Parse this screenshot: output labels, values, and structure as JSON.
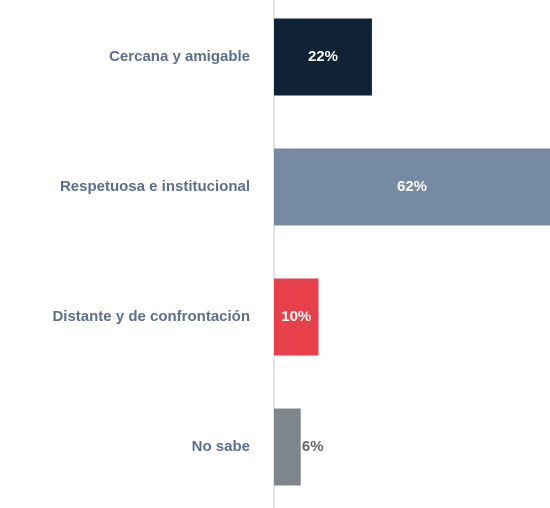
{
  "chart_data": {
    "type": "hbar",
    "categories": [
      "Cercana y amigable",
      "Respetuosa e institucional",
      "Distante y de confrontación",
      "No sabe"
    ],
    "values": [
      22,
      62,
      10,
      6
    ],
    "value_labels": [
      "22%",
      "62%",
      "10%",
      "6%"
    ],
    "colors": [
      "#0f2236",
      "#768ba3",
      "#e8404a",
      "#7f858c"
    ]
  }
}
